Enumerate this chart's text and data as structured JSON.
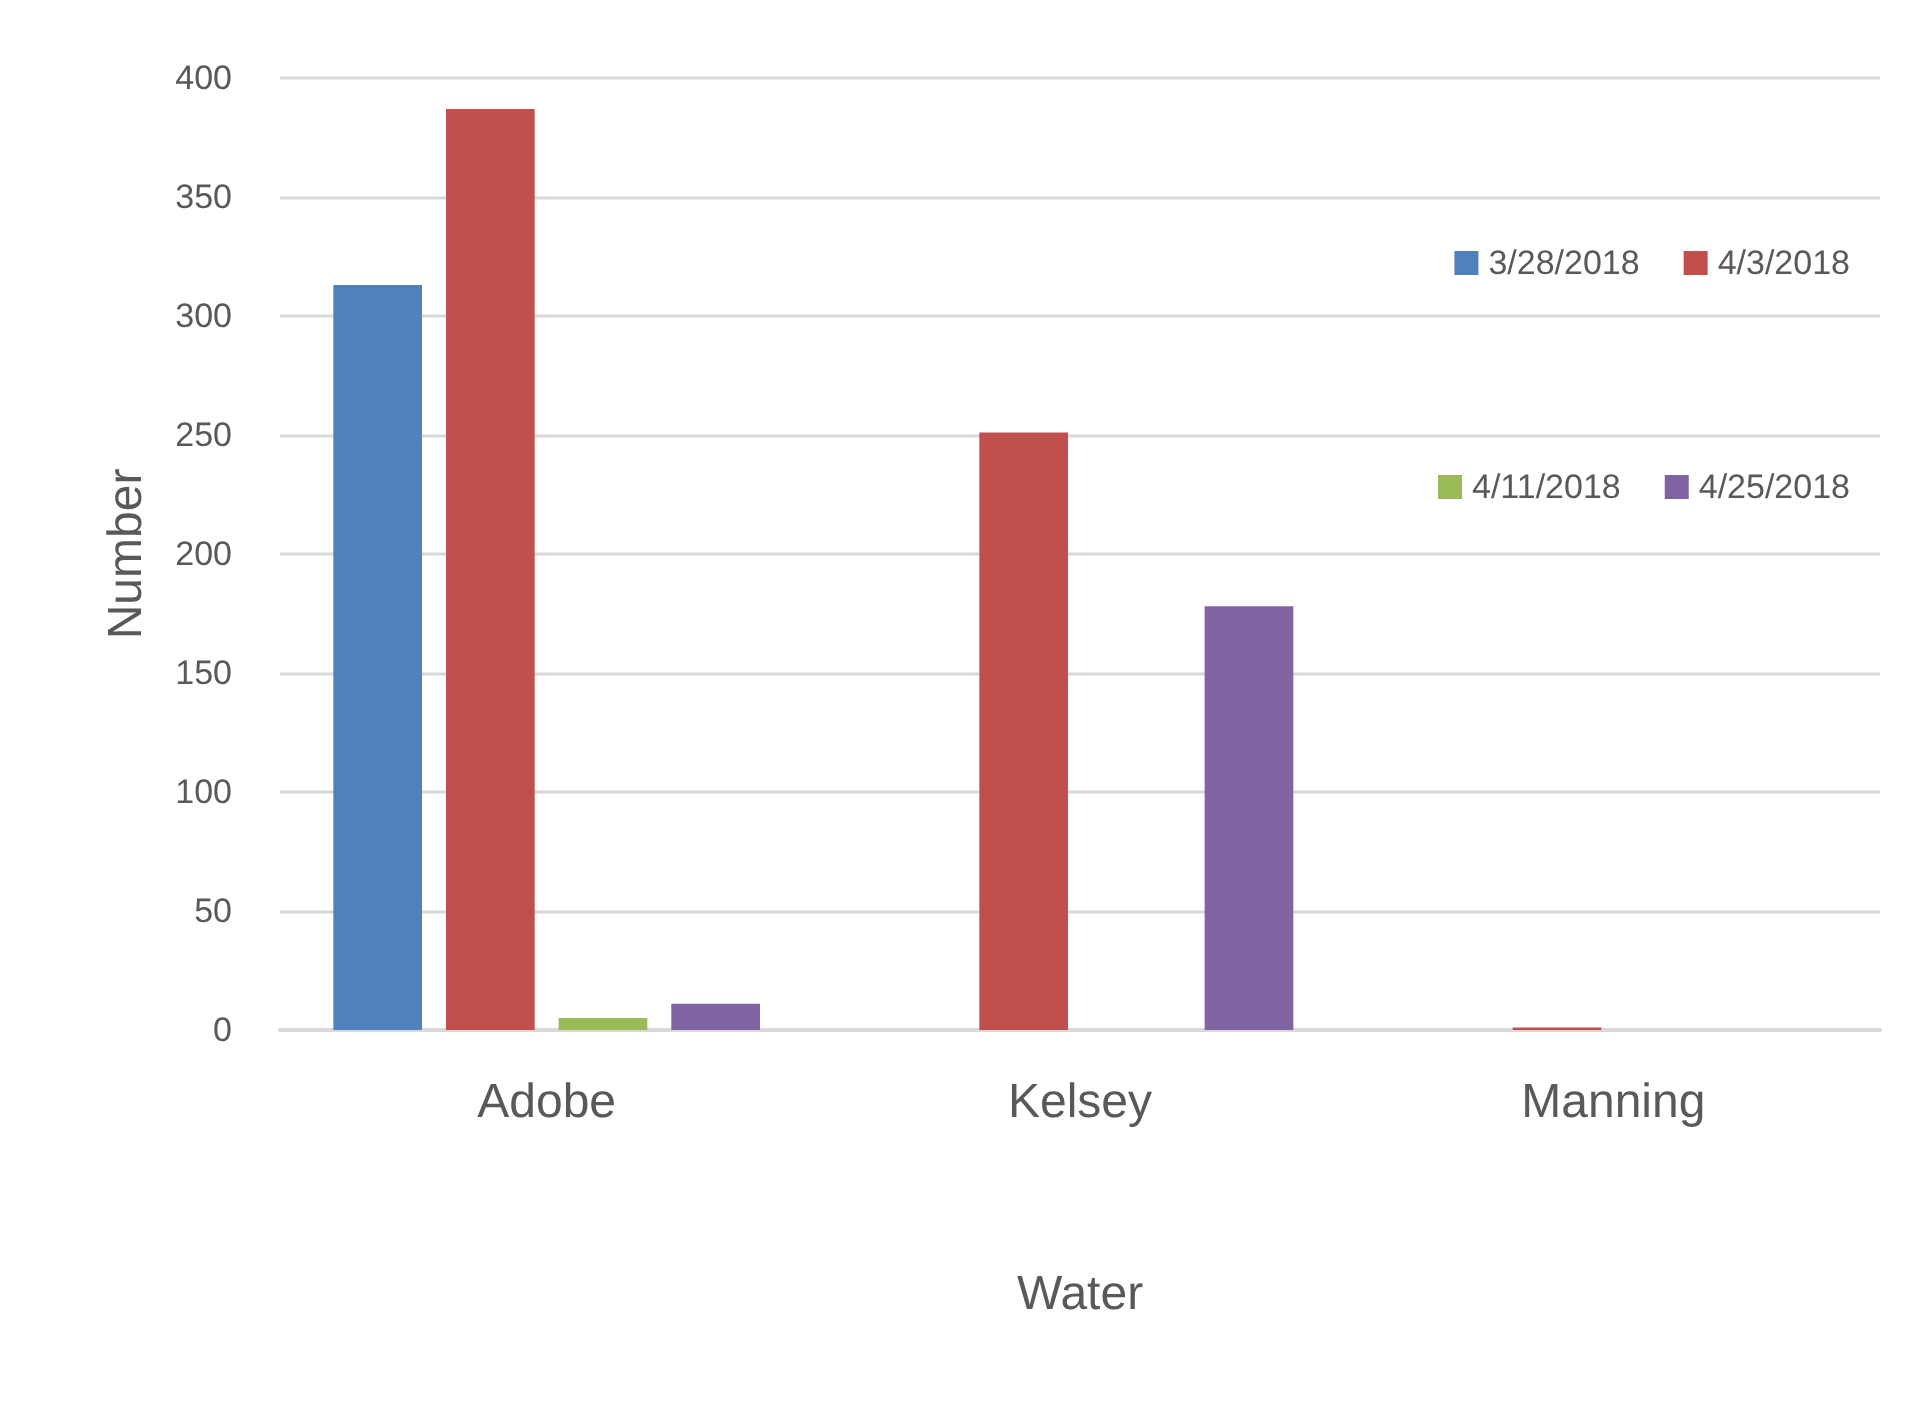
{
  "chart_data": {
    "type": "bar",
    "xlabel": "Water",
    "ylabel": "Number",
    "categories": [
      "Adobe",
      "Kelsey",
      "Manning"
    ],
    "series": [
      {
        "name": "3/28/2018",
        "color": "#4f81bd",
        "values": [
          313,
          0,
          0
        ]
      },
      {
        "name": "4/3/2018",
        "color": "#c0504d",
        "values": [
          387,
          251,
          1
        ]
      },
      {
        "name": "4/11/2018",
        "color": "#9bbb59",
        "values": [
          5,
          0,
          0
        ]
      },
      {
        "name": "4/25/2018",
        "color": "#8064a2",
        "values": [
          11,
          178,
          0
        ]
      }
    ],
    "ylim": [
      0,
      400
    ],
    "yticks": [
      0,
      50,
      100,
      150,
      200,
      250,
      300,
      350,
      400
    ],
    "grid": "y",
    "legend": "top right"
  }
}
